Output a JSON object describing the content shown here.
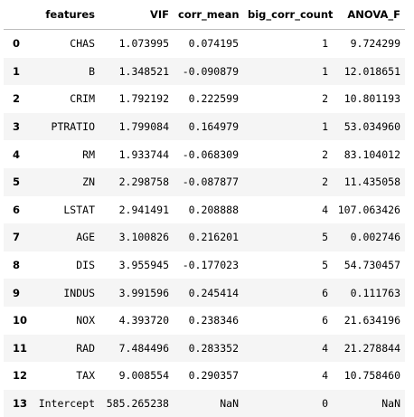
{
  "table": {
    "columns": [
      "",
      "features",
      "VIF",
      "corr_mean",
      "big_corr_count",
      "ANOVA_F"
    ],
    "rows": [
      {
        "index": "0",
        "features": "CHAS",
        "vif": "1.073995",
        "corr_mean": "0.074195",
        "big_corr_count": "1",
        "anova_f": "9.724299"
      },
      {
        "index": "1",
        "features": "B",
        "vif": "1.348521",
        "corr_mean": "-0.090879",
        "big_corr_count": "1",
        "anova_f": "12.018651"
      },
      {
        "index": "2",
        "features": "CRIM",
        "vif": "1.792192",
        "corr_mean": "0.222599",
        "big_corr_count": "2",
        "anova_f": "10.801193"
      },
      {
        "index": "3",
        "features": "PTRATIO",
        "vif": "1.799084",
        "corr_mean": "0.164979",
        "big_corr_count": "1",
        "anova_f": "53.034960"
      },
      {
        "index": "4",
        "features": "RM",
        "vif": "1.933744",
        "corr_mean": "-0.068309",
        "big_corr_count": "2",
        "anova_f": "83.104012"
      },
      {
        "index": "5",
        "features": "ZN",
        "vif": "2.298758",
        "corr_mean": "-0.087877",
        "big_corr_count": "2",
        "anova_f": "11.435058"
      },
      {
        "index": "6",
        "features": "LSTAT",
        "vif": "2.941491",
        "corr_mean": "0.208888",
        "big_corr_count": "4",
        "anova_f": "107.063426"
      },
      {
        "index": "7",
        "features": "AGE",
        "vif": "3.100826",
        "corr_mean": "0.216201",
        "big_corr_count": "5",
        "anova_f": "0.002746"
      },
      {
        "index": "8",
        "features": "DIS",
        "vif": "3.955945",
        "corr_mean": "-0.177023",
        "big_corr_count": "5",
        "anova_f": "54.730457"
      },
      {
        "index": "9",
        "features": "INDUS",
        "vif": "3.991596",
        "corr_mean": "0.245414",
        "big_corr_count": "6",
        "anova_f": "0.111763"
      },
      {
        "index": "10",
        "features": "NOX",
        "vif": "4.393720",
        "corr_mean": "0.238346",
        "big_corr_count": "6",
        "anova_f": "21.634196"
      },
      {
        "index": "11",
        "features": "RAD",
        "vif": "7.484496",
        "corr_mean": "0.283352",
        "big_corr_count": "4",
        "anova_f": "21.278844"
      },
      {
        "index": "12",
        "features": "TAX",
        "vif": "9.008554",
        "corr_mean": "0.290357",
        "big_corr_count": "4",
        "anova_f": "10.758460"
      },
      {
        "index": "13",
        "features": "Intercept",
        "vif": "585.265238",
        "corr_mean": "NaN",
        "big_corr_count": "0",
        "anova_f": "NaN"
      }
    ]
  }
}
